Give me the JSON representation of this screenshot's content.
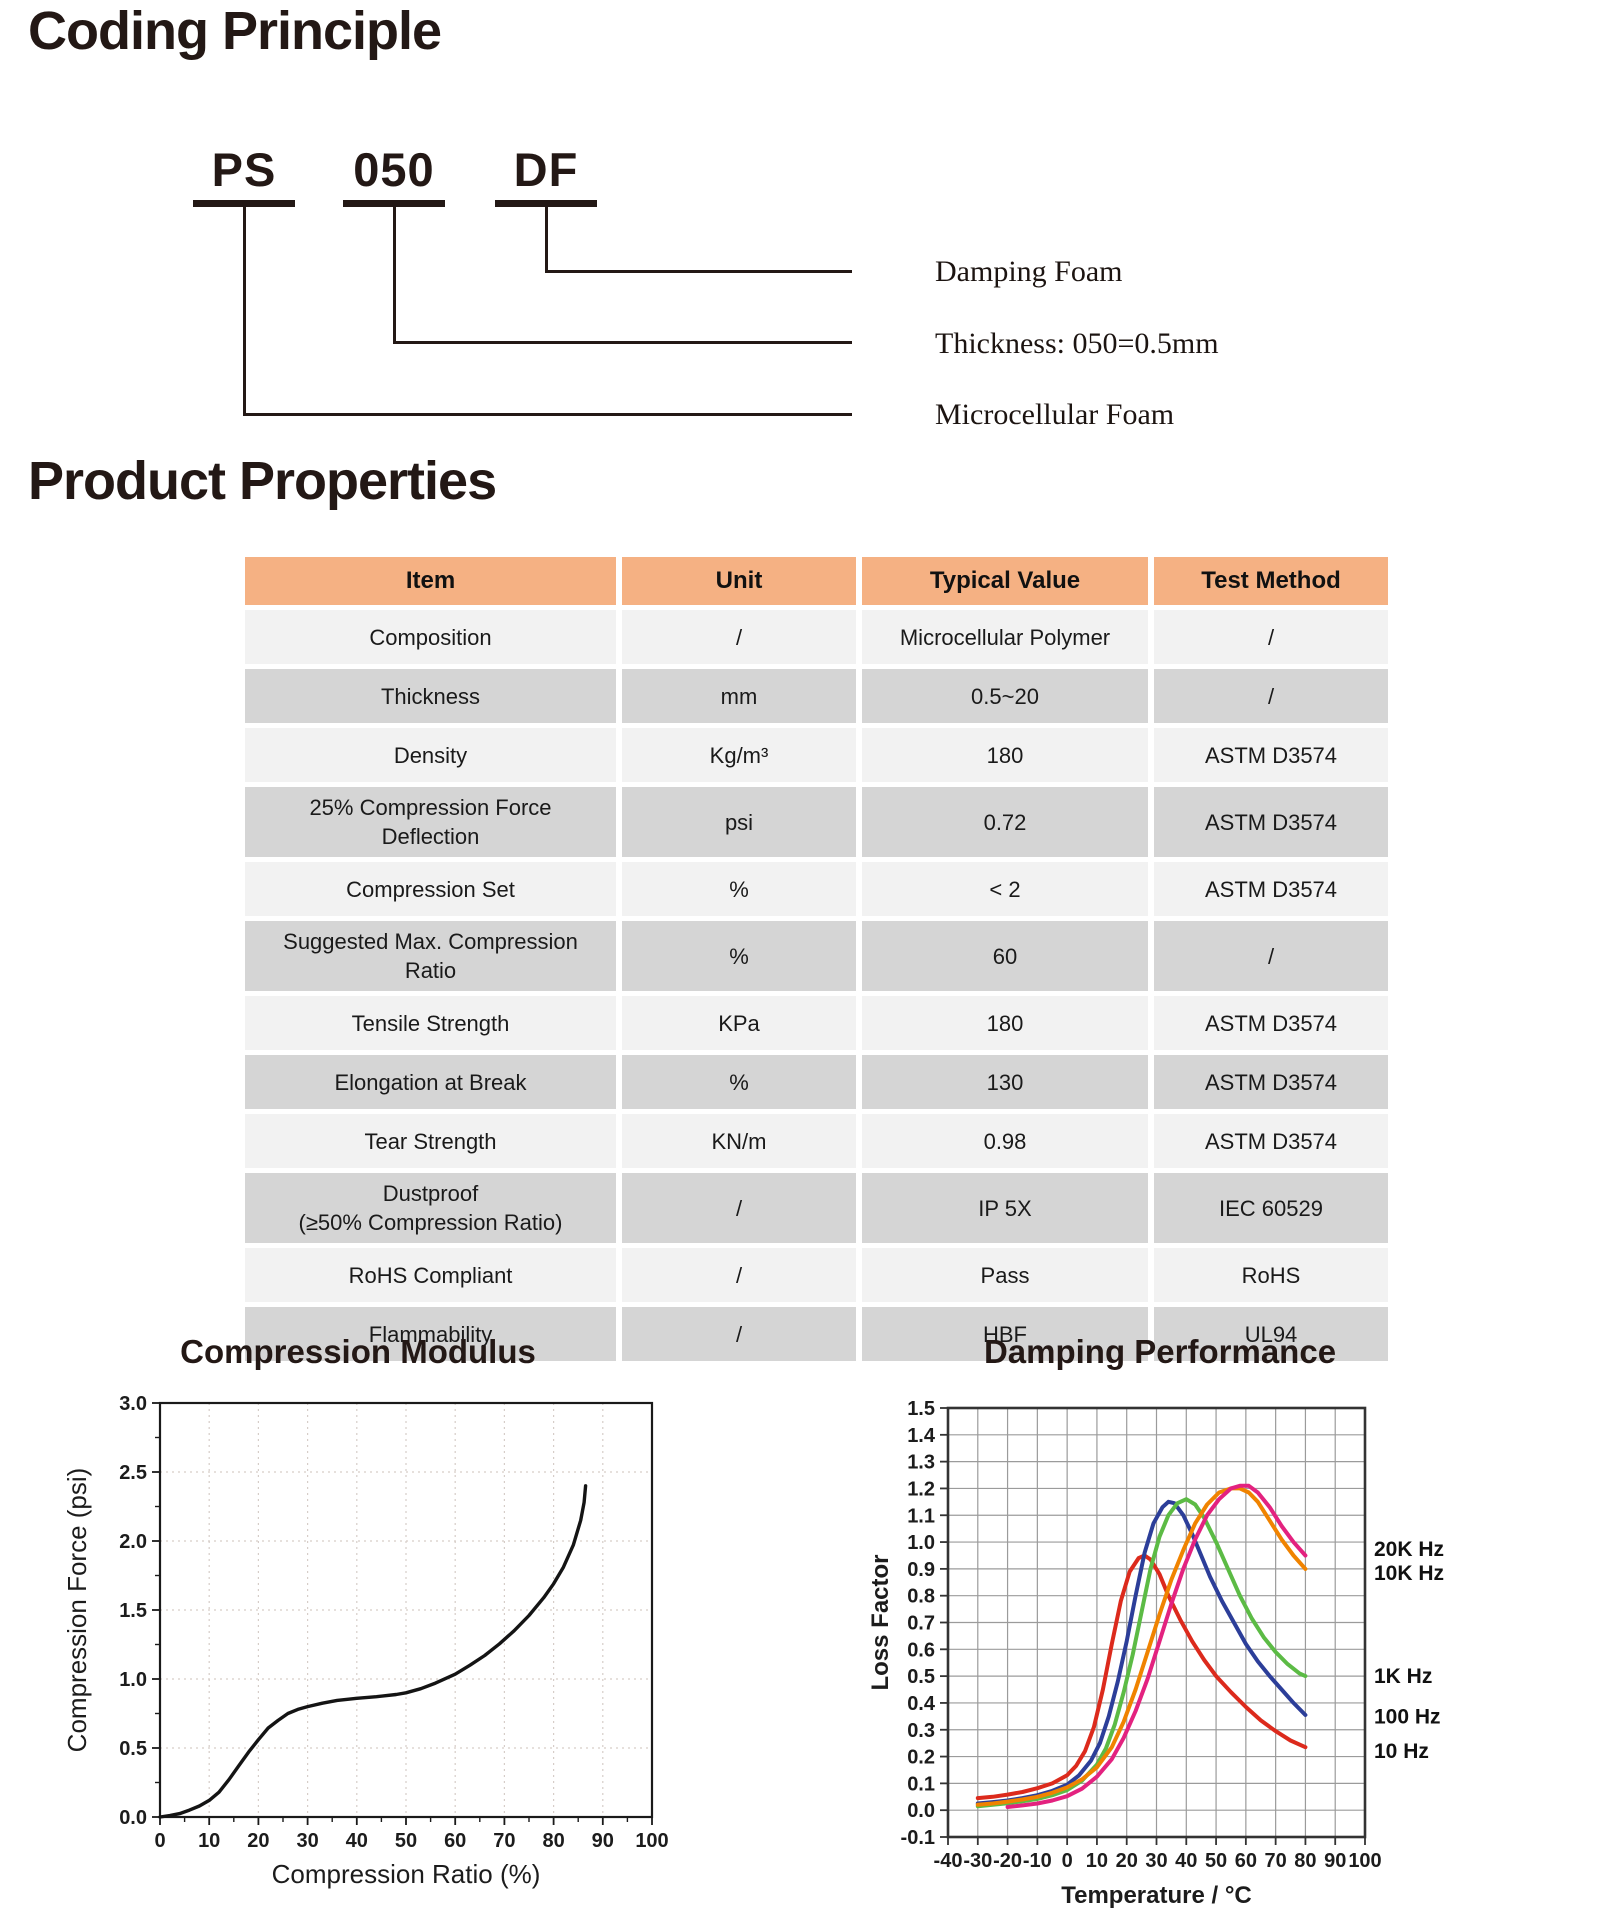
{
  "headings": {
    "coding": "Coding Principle",
    "properties": "Product Properties"
  },
  "coding": {
    "parts": [
      "PS",
      "050",
      "DF"
    ],
    "labels": [
      "Damping Foam",
      "Thickness: 050=0.5mm",
      "Microcellular Foam"
    ]
  },
  "table": {
    "headers": [
      "Item",
      "Unit",
      "Typical Value",
      "Test Method"
    ],
    "rows": [
      {
        "item": "Composition",
        "unit": "/",
        "value": "Microcellular Polymer",
        "method": "/"
      },
      {
        "item": "Thickness",
        "unit": "mm",
        "value": "0.5~20",
        "method": "/"
      },
      {
        "item": "Density",
        "unit": "Kg/m³",
        "value": "180",
        "method": "ASTM D3574"
      },
      {
        "item": "25% Compression Force\nDeflection",
        "unit": "psi",
        "value": "0.72",
        "method": "ASTM D3574"
      },
      {
        "item": "Compression Set",
        "unit": "%",
        "value": "< 2",
        "method": "ASTM D3574"
      },
      {
        "item": "Suggested Max. Compression\nRatio",
        "unit": "%",
        "value": "60",
        "method": "/"
      },
      {
        "item": "Tensile Strength",
        "unit": "KPa",
        "value": "180",
        "method": "ASTM D3574"
      },
      {
        "item": "Elongation at Break",
        "unit": "%",
        "value": "130",
        "method": "ASTM D3574"
      },
      {
        "item": "Tear Strength",
        "unit": "KN/m",
        "value": "0.98",
        "method": "ASTM D3574"
      },
      {
        "item": "Dustproof\n(≥50% Compression Ratio)",
        "unit": "/",
        "value": "IP 5X",
        "method": "IEC 60529"
      },
      {
        "item": "RoHS Compliant",
        "unit": "/",
        "value": "Pass",
        "method": "RoHS"
      },
      {
        "item": "Flammability",
        "unit": "/",
        "value": "HBF",
        "method": "UL94"
      }
    ]
  },
  "chart_data": [
    {
      "type": "line",
      "title": "Compression Modulus",
      "xlabel": "Compression Ratio (%)",
      "ylabel": "Compression Force (psi)",
      "xlim": [
        0,
        100
      ],
      "ylim": [
        0,
        3
      ],
      "x_ticks": [
        0,
        10,
        20,
        30,
        40,
        50,
        60,
        70,
        80,
        90,
        100
      ],
      "x_tick_labels": [
        "0",
        "10",
        "20",
        "30",
        "40",
        "50",
        "60",
        "70",
        "80",
        "90",
        "100"
      ],
      "y_ticks": [
        0,
        0.5,
        1,
        1.5,
        2,
        2.5,
        3
      ],
      "y_tick_labels": [
        "0.0",
        "0.5",
        "1.0",
        "1.5",
        "2.0",
        "2.5",
        "3.0"
      ],
      "x_minor": 5,
      "y_minor": 0.25,
      "grid": "dotted",
      "legend_position": "none",
      "series": [
        {
          "name": "compression-curve",
          "color": "#141414",
          "points": [
            [
              0,
              0
            ],
            [
              2,
              0.01
            ],
            [
              4,
              0.025
            ],
            [
              6,
              0.05
            ],
            [
              8,
              0.08
            ],
            [
              10,
              0.12
            ],
            [
              12,
              0.18
            ],
            [
              14,
              0.27
            ],
            [
              16,
              0.37
            ],
            [
              18,
              0.47
            ],
            [
              20,
              0.56
            ],
            [
              22,
              0.645
            ],
            [
              24,
              0.7
            ],
            [
              26,
              0.75
            ],
            [
              28,
              0.78
            ],
            [
              30,
              0.8
            ],
            [
              33,
              0.825
            ],
            [
              36,
              0.845
            ],
            [
              40,
              0.86
            ],
            [
              44,
              0.872
            ],
            [
              48,
              0.888
            ],
            [
              50,
              0.9
            ],
            [
              53,
              0.93
            ],
            [
              56,
              0.97
            ],
            [
              60,
              1.035
            ],
            [
              63,
              1.1
            ],
            [
              66,
              1.17
            ],
            [
              69,
              1.255
            ],
            [
              72,
              1.35
            ],
            [
              75,
              1.46
            ],
            [
              78,
              1.59
            ],
            [
              80,
              1.69
            ],
            [
              82,
              1.81
            ],
            [
              84,
              1.97
            ],
            [
              85.5,
              2.15
            ],
            [
              86.2,
              2.28
            ],
            [
              86.5,
              2.4
            ]
          ]
        }
      ]
    },
    {
      "type": "line",
      "title": "Damping Performance",
      "xlabel": "Temperature / °C",
      "ylabel": "Loss Factor",
      "xlim": [
        -40,
        100
      ],
      "ylim": [
        -0.1,
        1.5
      ],
      "x_ticks": [
        -40,
        -30,
        -20,
        -10,
        0,
        10,
        20,
        30,
        40,
        50,
        60,
        70,
        80,
        90,
        100
      ],
      "x_tick_labels": [
        "-40",
        "-30",
        "-20",
        "-10",
        "0",
        "10",
        "20",
        "30",
        "40",
        "50",
        "60",
        "70",
        "80",
        "90",
        "100"
      ],
      "y_ticks": [
        -0.1,
        0,
        0.1,
        0.2,
        0.3,
        0.4,
        0.5,
        0.6,
        0.7,
        0.8,
        0.9,
        1,
        1.1,
        1.2,
        1.3,
        1.4,
        1.5
      ],
      "y_tick_labels": [
        "-0.1",
        "0.0",
        "0.1",
        "0.2",
        "0.3",
        "0.4",
        "0.5",
        "0.6",
        "0.7",
        "0.8",
        "0.9",
        "1.0",
        "1.1",
        "1.2",
        "1.3",
        "1.4",
        "1.5"
      ],
      "grid": "solid",
      "legend_position": "right-inline",
      "series": [
        {
          "name": "10 Hz",
          "color": "#dc2a1c",
          "label_y": 0.22,
          "points": [
            [
              -30,
              0.045
            ],
            [
              -25,
              0.05
            ],
            [
              -20,
              0.058
            ],
            [
              -15,
              0.068
            ],
            [
              -10,
              0.082
            ],
            [
              -5,
              0.1
            ],
            [
              0,
              0.13
            ],
            [
              3,
              0.165
            ],
            [
              6,
              0.22
            ],
            [
              9,
              0.31
            ],
            [
              12,
              0.45
            ],
            [
              15,
              0.62
            ],
            [
              18,
              0.78
            ],
            [
              21,
              0.89
            ],
            [
              24,
              0.94
            ],
            [
              26,
              0.95
            ],
            [
              28,
              0.935
            ],
            [
              31,
              0.88
            ],
            [
              34,
              0.8
            ],
            [
              38,
              0.71
            ],
            [
              42,
              0.63
            ],
            [
              46,
              0.56
            ],
            [
              50,
              0.5
            ],
            [
              55,
              0.44
            ],
            [
              60,
              0.385
            ],
            [
              65,
              0.335
            ],
            [
              70,
              0.295
            ],
            [
              75,
              0.26
            ],
            [
              80,
              0.235
            ]
          ]
        },
        {
          "name": "100 Hz",
          "color": "#2c3e99",
          "label_y": 0.35,
          "points": [
            [
              -30,
              0.025
            ],
            [
              -25,
              0.03
            ],
            [
              -20,
              0.036
            ],
            [
              -15,
              0.045
            ],
            [
              -10,
              0.056
            ],
            [
              -5,
              0.072
            ],
            [
              0,
              0.095
            ],
            [
              4,
              0.13
            ],
            [
              8,
              0.185
            ],
            [
              11,
              0.25
            ],
            [
              14,
              0.35
            ],
            [
              17,
              0.48
            ],
            [
              20,
              0.63
            ],
            [
              23,
              0.8
            ],
            [
              26,
              0.96
            ],
            [
              29,
              1.07
            ],
            [
              32,
              1.13
            ],
            [
              34,
              1.15
            ],
            [
              36,
              1.145
            ],
            [
              39,
              1.1
            ],
            [
              42,
              1.03
            ],
            [
              45,
              0.95
            ],
            [
              48,
              0.87
            ],
            [
              52,
              0.78
            ],
            [
              56,
              0.7
            ],
            [
              60,
              0.62
            ],
            [
              64,
              0.555
            ],
            [
              68,
              0.5
            ],
            [
              72,
              0.45
            ],
            [
              76,
              0.4
            ],
            [
              80,
              0.355
            ]
          ]
        },
        {
          "name": "1K Hz",
          "color": "#5cbb45",
          "label_y": 0.5,
          "points": [
            [
              -30,
              0.015
            ],
            [
              -25,
              0.02
            ],
            [
              -20,
              0.026
            ],
            [
              -15,
              0.033
            ],
            [
              -10,
              0.042
            ],
            [
              -5,
              0.056
            ],
            [
              0,
              0.075
            ],
            [
              5,
              0.11
            ],
            [
              10,
              0.17
            ],
            [
              13,
              0.23
            ],
            [
              16,
              0.32
            ],
            [
              19,
              0.44
            ],
            [
              22,
              0.58
            ],
            [
              25,
              0.74
            ],
            [
              28,
              0.9
            ],
            [
              31,
              1.02
            ],
            [
              34,
              1.1
            ],
            [
              37,
              1.145
            ],
            [
              40,
              1.16
            ],
            [
              43,
              1.14
            ],
            [
              46,
              1.09
            ],
            [
              50,
              1.0
            ],
            [
              54,
              0.9
            ],
            [
              58,
              0.8
            ],
            [
              62,
              0.715
            ],
            [
              66,
              0.645
            ],
            [
              70,
              0.59
            ],
            [
              74,
              0.545
            ],
            [
              78,
              0.51
            ],
            [
              80,
              0.5
            ]
          ]
        },
        {
          "name": "10K Hz",
          "color": "#f08300",
          "label_y": 0.885,
          "points": [
            [
              -30,
              0.02
            ],
            [
              -25,
              0.025
            ],
            [
              -20,
              0.032
            ],
            [
              -15,
              0.04
            ],
            [
              -10,
              0.05
            ],
            [
              -5,
              0.065
            ],
            [
              0,
              0.085
            ],
            [
              5,
              0.115
            ],
            [
              10,
              0.16
            ],
            [
              15,
              0.235
            ],
            [
              19,
              0.33
            ],
            [
              23,
              0.45
            ],
            [
              27,
              0.59
            ],
            [
              31,
              0.73
            ],
            [
              35,
              0.86
            ],
            [
              39,
              0.97
            ],
            [
              43,
              1.07
            ],
            [
              47,
              1.14
            ],
            [
              51,
              1.185
            ],
            [
              55,
              1.2
            ],
            [
              58,
              1.2
            ],
            [
              61,
              1.185
            ],
            [
              64,
              1.15
            ],
            [
              68,
              1.08
            ],
            [
              72,
              1.01
            ],
            [
              76,
              0.95
            ],
            [
              80,
              0.9
            ]
          ]
        },
        {
          "name": "20K Hz",
          "color": "#e3227f",
          "label_y": 0.975,
          "points": [
            [
              -20,
              0.012
            ],
            [
              -15,
              0.018
            ],
            [
              -10,
              0.025
            ],
            [
              -5,
              0.036
            ],
            [
              0,
              0.052
            ],
            [
              5,
              0.08
            ],
            [
              10,
              0.125
            ],
            [
              15,
              0.19
            ],
            [
              19,
              0.27
            ],
            [
              23,
              0.37
            ],
            [
              27,
              0.49
            ],
            [
              31,
              0.63
            ],
            [
              35,
              0.77
            ],
            [
              39,
              0.9
            ],
            [
              43,
              1.01
            ],
            [
              47,
              1.1
            ],
            [
              51,
              1.16
            ],
            [
              55,
              1.2
            ],
            [
              58,
              1.21
            ],
            [
              61,
              1.21
            ],
            [
              64,
              1.185
            ],
            [
              68,
              1.13
            ],
            [
              72,
              1.06
            ],
            [
              76,
              1.0
            ],
            [
              80,
              0.95
            ]
          ]
        }
      ]
    }
  ]
}
